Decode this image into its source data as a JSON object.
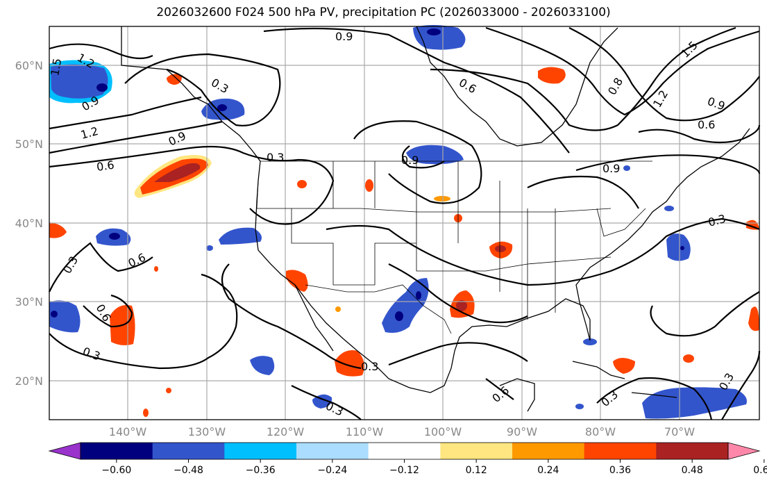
{
  "title": "2026032600 F024 500 hPa PV, precipitation PC (2026033000 - 2026033100)",
  "lat_labels": [
    "60°N",
    "50°N",
    "40°N",
    "30°N",
    "20°N"
  ],
  "lon_labels": [
    "140°W",
    "130°W",
    "120°W",
    "110°W",
    "100°W",
    "90°W",
    "80°W",
    "70°W"
  ],
  "colorbar": {
    "ticks": [
      "−0.60",
      "−0.48",
      "−0.36",
      "−0.24",
      "−0.12",
      "0.12",
      "0.24",
      "0.36",
      "0.48",
      "0.60"
    ],
    "colors": [
      "#9933cc",
      "#00007f",
      "#3355cc",
      "#00bfff",
      "#aaddff",
      "#ffffff",
      "#ffe680",
      "#ff9900",
      "#ff4400",
      "#aa2222",
      "#ff88aa"
    ]
  },
  "contour_labels": [
    {
      "name": "pv-label-0.9-top",
      "text": "0.9"
    },
    {
      "name": "pv-label-1.2-nw",
      "text": "1.2"
    },
    {
      "name": "pv-label-1.5-nw",
      "text": "1.5"
    },
    {
      "name": "pv-label-0.9-nw",
      "text": "0.9"
    },
    {
      "name": "pv-label-0.3-alaska",
      "text": "0.3"
    },
    {
      "name": "pv-label-1.2-west",
      "text": "1.2"
    },
    {
      "name": "pv-label-0.9-west",
      "text": "0.9"
    },
    {
      "name": "pv-label-0.6-west",
      "text": "0.6"
    },
    {
      "name": "pv-label-0.3-pnw",
      "text": "0.3"
    },
    {
      "name": "pv-label-0.6-canada",
      "text": "0.6"
    },
    {
      "name": "pv-label-0.9-ontario",
      "text": "0.9"
    },
    {
      "name": "pv-label-0.9-quebec",
      "text": "0.9"
    },
    {
      "name": "pv-label-0.8-hudson",
      "text": "0.8"
    },
    {
      "name": "pv-label-1.2-east",
      "text": "1.2"
    },
    {
      "name": "pv-label-0.9-ne",
      "text": "0.9"
    },
    {
      "name": "pv-label-0.6-ne",
      "text": "0.6"
    },
    {
      "name": "pv-label-1.5-ne",
      "text": "1.5"
    },
    {
      "name": "pv-label-0.3-atlantic",
      "text": "0.3"
    },
    {
      "name": "pv-label-0.3-pacific",
      "text": "0.3"
    },
    {
      "name": "pv-label-0.6-pacific",
      "text": "0.6"
    },
    {
      "name": "pv-label-0.6-sw",
      "text": "0.6"
    },
    {
      "name": "pv-label-0.3-sw",
      "text": "0.3"
    },
    {
      "name": "pv-label-0.3-mexico",
      "text": "0.3"
    },
    {
      "name": "pv-label-0.3-baja",
      "text": "0.3"
    },
    {
      "name": "pv-label-0.6-yucatan",
      "text": "0.6"
    },
    {
      "name": "pv-label-0.3-caribbean",
      "text": "0.3"
    },
    {
      "name": "pv-label-0.3-se",
      "text": "0.3"
    }
  ]
}
